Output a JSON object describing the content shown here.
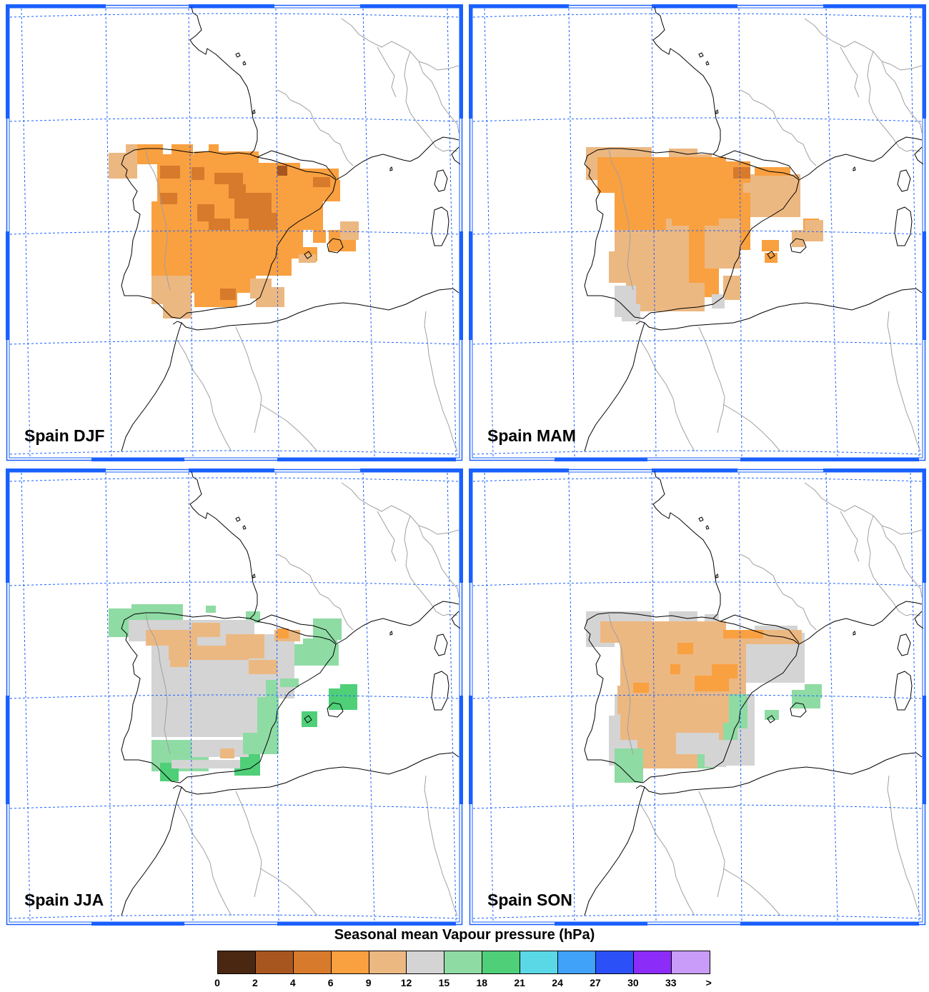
{
  "figure": {
    "panels": [
      {
        "label": "Spain DJF"
      },
      {
        "label": "Spain MAM"
      },
      {
        "label": "Spain JJA"
      },
      {
        "label": "Spain SON"
      }
    ],
    "legend": {
      "title": "Seasonal mean Vapour pressure (hPa)",
      "tick_labels": [
        "0",
        "2",
        "4",
        "6",
        "9",
        "12",
        "15",
        "18",
        "21",
        "24",
        "27",
        "30",
        "33",
        ">"
      ],
      "colors": [
        "#4a2710",
        "#a85620",
        "#d87a2c",
        "#f9a040",
        "#ecb882",
        "#d4d4d4",
        "#8fdba4",
        "#4fcf78",
        "#5ad8e6",
        "#40a2f8",
        "#2c50f8",
        "#8c2cf8",
        "#c89cf8"
      ]
    }
  }
}
